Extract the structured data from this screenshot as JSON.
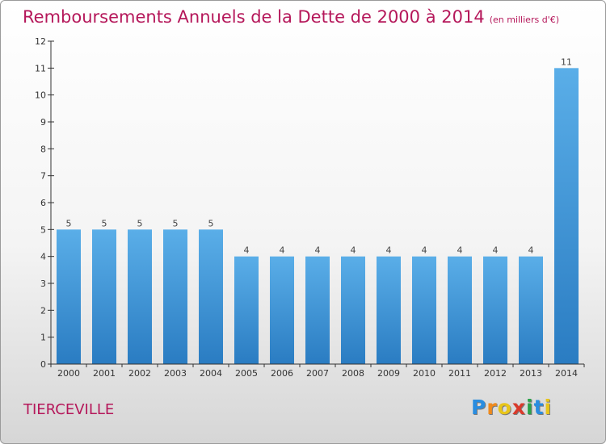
{
  "title": "Remboursements Annuels de la Dette de 2000 à 2014",
  "unit": "(en milliers d'€)",
  "commune": "TIERCEVILLE",
  "logo": {
    "letters": [
      "P",
      "r",
      "o",
      "x",
      "i",
      "t",
      "i"
    ],
    "colors": [
      "#2a8de0",
      "#f08a1c",
      "#e8c51a",
      "#d93a2b",
      "#2ca24a",
      "#2a8de0",
      "#e8c51a"
    ]
  },
  "chart_data": {
    "type": "bar",
    "categories": [
      "2000",
      "2001",
      "2002",
      "2003",
      "2004",
      "2005",
      "2006",
      "2007",
      "2008",
      "2009",
      "2010",
      "2011",
      "2012",
      "2013",
      "2014"
    ],
    "values": [
      5,
      5,
      5,
      5,
      5,
      4,
      4,
      4,
      4,
      4,
      4,
      4,
      4,
      4,
      11
    ],
    "data_labels": [
      "5",
      "5",
      "5",
      "5",
      "5",
      "4",
      "4",
      "4",
      "4",
      "4",
      "4",
      "4",
      "4",
      "4",
      "11"
    ],
    "ylim": [
      0,
      12
    ],
    "yticks": [
      "0",
      "1",
      "2",
      "3",
      "4",
      "5",
      "6",
      "7",
      "8",
      "9",
      "10",
      "11",
      "12"
    ],
    "grid": false,
    "bar_color": "#4a9fe0"
  }
}
